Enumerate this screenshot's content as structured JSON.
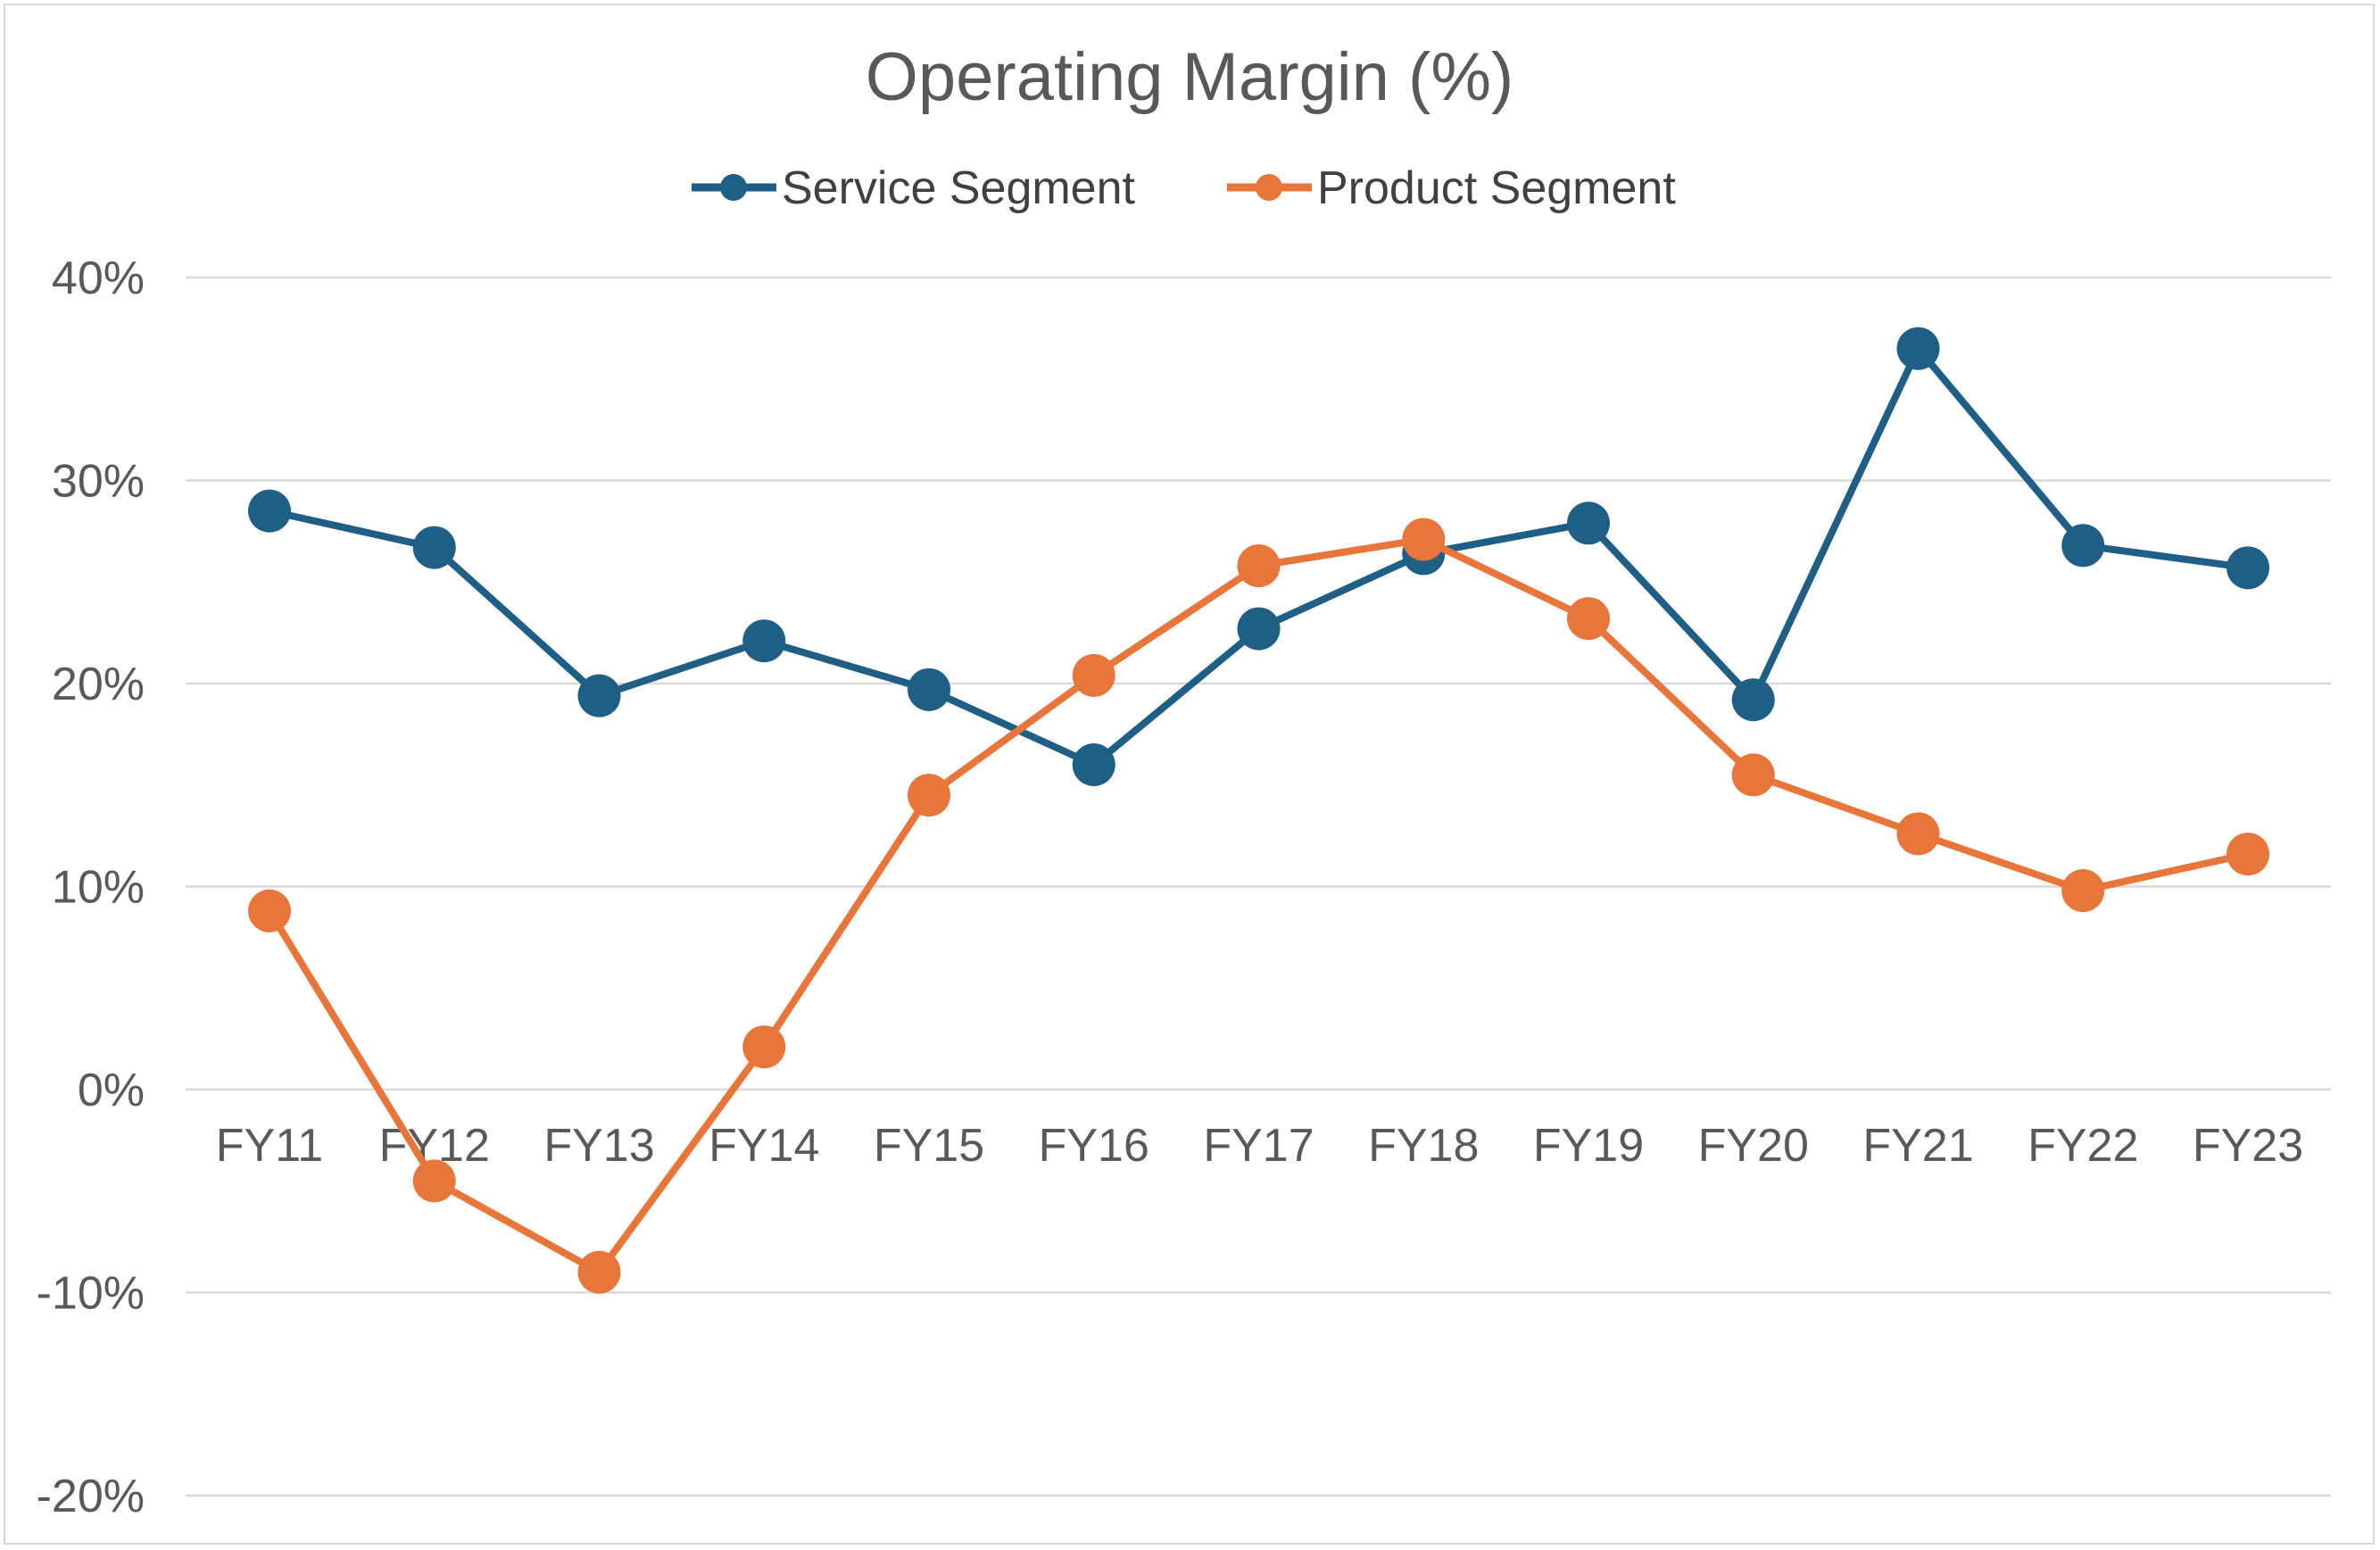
{
  "chart_data": {
    "type": "line",
    "title": "Operating Margin (%)",
    "xlabel": "",
    "ylabel": "",
    "categories": [
      "FY11",
      "FY12",
      "FY13",
      "FY14",
      "FY15",
      "FY16",
      "FY17",
      "FY18",
      "FY19",
      "FY20",
      "FY21",
      "FY22",
      "FY23"
    ],
    "ylim": [
      -20,
      40
    ],
    "yticks": [
      40,
      30,
      20,
      10,
      0,
      -10,
      -20
    ],
    "ytick_labels": [
      "40%",
      "30%",
      "20%",
      "10%",
      "0%",
      "-10%",
      "-20%"
    ],
    "grid": true,
    "legend_position": "top",
    "series": [
      {
        "name": "Service Segment",
        "color": "#1f5f86",
        "values": [
          28.5,
          26.7,
          19.4,
          22.1,
          19.7,
          16.0,
          22.7,
          26.4,
          27.9,
          19.2,
          36.5,
          26.8,
          25.7
        ]
      },
      {
        "name": "Product Segment",
        "color": "#e8763a",
        "values": [
          8.8,
          -4.5,
          -9.0,
          2.1,
          14.5,
          20.4,
          25.8,
          27.1,
          23.2,
          15.5,
          12.6,
          9.8,
          11.6
        ]
      }
    ]
  }
}
